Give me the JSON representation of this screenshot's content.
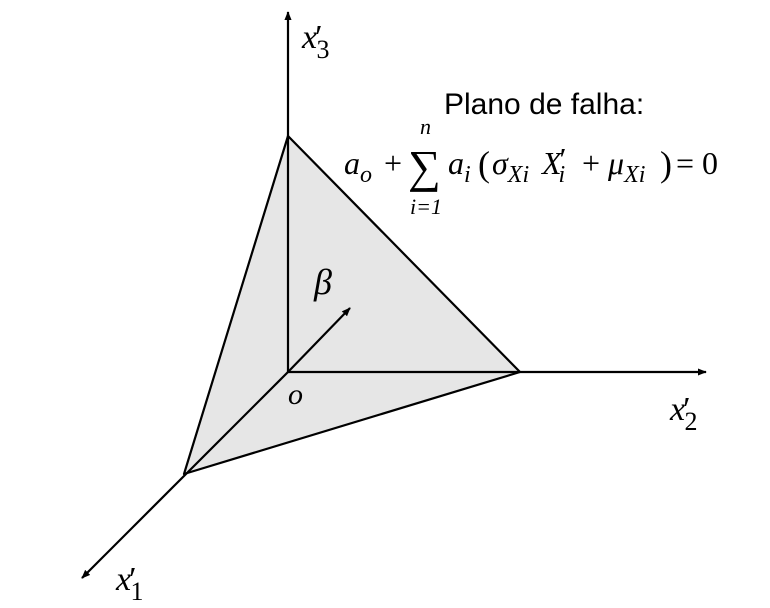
{
  "axes": {
    "x1": {
      "base": "x",
      "prime": "′",
      "sub": "1"
    },
    "x2": {
      "base": "x",
      "prime": "′",
      "sub": "2"
    },
    "x3": {
      "base": "x",
      "prime": "′",
      "sub": "3"
    }
  },
  "origin_label": "o",
  "beta_label": "β",
  "plane": {
    "title": "Plano de falha:",
    "eq": {
      "a": "a",
      "o_sub": "o",
      "plus1": "+",
      "sigma": "∑",
      "n": "n",
      "lower": "i=1",
      "ai": "a",
      "i_sub": "i",
      "lparen": "(",
      "sigma_small": "σ",
      "Xi1": "Xi",
      "X": "X",
      "X_prime": "′",
      "X_sub": "i",
      "plus2": "+",
      "mu": "μ",
      "Xi2": "Xi",
      "rparen": ")",
      "equals": "= 0"
    }
  },
  "colors": {
    "plane_fill": "#e6e6e6",
    "stroke": "#000000"
  }
}
